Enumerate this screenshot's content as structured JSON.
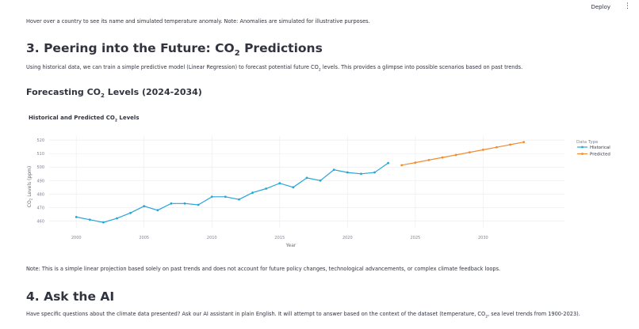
{
  "header": {
    "deploy_label": "Deploy",
    "menu_icon": "vertical-ellipsis-icon"
  },
  "intro_text": "Hover over a country to see its name and simulated temperature anomaly. Note: Anomalies are simulated for illustrative purposes.",
  "section3": {
    "heading_pre": "3. Peering into the Future: CO",
    "heading_sub": "2",
    "heading_post": " Predictions",
    "desc_pre": "Using historical data, we can train a simple predictive model (Linear Regression) to forecast potential future CO",
    "desc_sub": "2",
    "desc_post": " levels. This provides a glimpse into possible scenarios based on past trends.",
    "subheading_pre": "Forecasting CO",
    "subheading_sub": "2",
    "subheading_post": " Levels (2024-2034)"
  },
  "chart_data": {
    "type": "line",
    "title_pre": "Historical and Predicted CO",
    "title_sub": "2",
    "title_post": " Levels",
    "xlabel": "Year",
    "ylabel_pre": "CO",
    "ylabel_sub": "2",
    "ylabel_post": " Levels (ppm)",
    "x_ticks": [
      "2000",
      "2005",
      "2010",
      "2015",
      "2020",
      "2025",
      "2030"
    ],
    "y_ticks": [
      "460",
      "470",
      "480",
      "490",
      "500",
      "510",
      "520"
    ],
    "xlim": [
      1998,
      2036
    ],
    "ylim": [
      455,
      523
    ],
    "grid": true,
    "legend_title": "Data Type",
    "legend_position": "right",
    "series": [
      {
        "name": "Historical",
        "color": "#29a5d8",
        "x": [
          2000,
          2001,
          2002,
          2003,
          2004,
          2005,
          2006,
          2007,
          2008,
          2009,
          2010,
          2011,
          2012,
          2013,
          2014,
          2015,
          2016,
          2017,
          2018,
          2019,
          2020,
          2021,
          2022,
          2023
        ],
        "y": [
          463,
          461,
          459,
          462,
          466,
          471,
          468,
          473,
          473,
          472,
          478,
          478,
          476,
          481,
          484,
          488,
          485,
          492,
          490,
          498,
          496,
          495,
          496,
          503
        ]
      },
      {
        "name": "Predicted",
        "color": "#f28b30",
        "x": [
          2024,
          2025,
          2026,
          2027,
          2028,
          2029,
          2030,
          2031,
          2032,
          2033
        ],
        "y": [
          501.4,
          503.3,
          505.2,
          507.1,
          509.0,
          510.9,
          512.8,
          514.7,
          516.6,
          518.5
        ]
      }
    ]
  },
  "note_text": "Note: This is a simple linear projection based solely on past trends and does not account for future policy changes, technological advancements, or complex climate feedback loops.",
  "section4": {
    "heading": "4. Ask the AI",
    "desc_pre": "Have specific questions about the climate data presented? Ask our AI assistant in plain English. It will attempt to answer based on the context of the dataset (temperature, CO",
    "desc_sub": "2",
    "desc_post": ", sea level trends from 1900-2023)."
  }
}
